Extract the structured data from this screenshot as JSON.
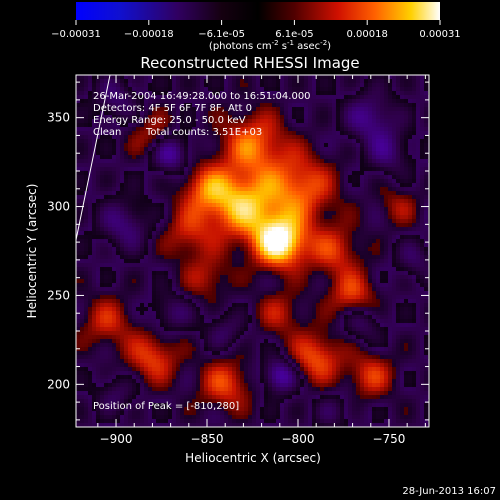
{
  "colorbar": {
    "ticks": [
      "-0.00031",
      "-0.00018",
      "-6.1e-05",
      "6.1e-05",
      "0.00018",
      "0.00031"
    ],
    "unit_label_main": "(photons cm",
    "unit_exp1": "-2",
    "unit_mid": " s",
    "unit_exp2": "-1",
    "unit_tail": " asec",
    "unit_exp3": "-2",
    "unit_close": ")"
  },
  "chart_data": {
    "type": "heatmap",
    "title": "Reconstructed RHESSI Image",
    "xlabel": "Heliocentric X (arcsec)",
    "ylabel": "Heliocentric Y (arcsec)",
    "xlim": [
      -922,
      -728
    ],
    "ylim": [
      176,
      374
    ],
    "xticks": [
      -900,
      -850,
      -800,
      -750
    ],
    "yticks": [
      200,
      250,
      300,
      350
    ],
    "xtick_labels": [
      "−900",
      "−850",
      "−800",
      "−750"
    ],
    "ytick_labels": [
      "200",
      "250",
      "300",
      "350"
    ],
    "colormap": "blue-black-red-yellow-white",
    "value_range": [
      -0.00031,
      0.00031
    ],
    "annotations": [
      "26-Mar-2004 16:49:28.000 to 16:51:04.000",
      "Detectors: 4F 5F 6F 7F 8F, Att 0",
      "Energy Range: 25.0 - 50.0 keV",
      "Clean",
      "Total counts: 3.51E+03",
      "Position of Peak = [-810,280]"
    ],
    "peak": [
      -810,
      280
    ],
    "blobs": [
      {
        "x": -810,
        "y": 280,
        "amp": 1.0,
        "s": 10
      },
      {
        "x": -830,
        "y": 300,
        "amp": 0.7,
        "s": 13
      },
      {
        "x": -800,
        "y": 310,
        "amp": 0.55,
        "s": 14
      },
      {
        "x": -825,
        "y": 335,
        "amp": 0.55,
        "s": 12
      },
      {
        "x": -850,
        "y": 310,
        "amp": 0.5,
        "s": 10
      },
      {
        "x": -860,
        "y": 285,
        "amp": 0.35,
        "s": 10
      },
      {
        "x": -780,
        "y": 275,
        "amp": 0.4,
        "s": 10
      },
      {
        "x": -770,
        "y": 250,
        "amp": 0.45,
        "s": 9
      },
      {
        "x": -810,
        "y": 240,
        "amp": 0.3,
        "s": 9
      },
      {
        "x": -790,
        "y": 215,
        "amp": 0.5,
        "s": 10
      },
      {
        "x": -760,
        "y": 205,
        "amp": 0.4,
        "s": 9
      },
      {
        "x": -880,
        "y": 215,
        "amp": 0.45,
        "s": 10
      },
      {
        "x": -905,
        "y": 235,
        "amp": 0.35,
        "s": 10
      },
      {
        "x": -840,
        "y": 200,
        "amp": 0.45,
        "s": 10
      },
      {
        "x": -850,
        "y": 260,
        "amp": 0.3,
        "s": 9
      },
      {
        "x": -880,
        "y": 340,
        "amp": 0.3,
        "s": 9
      },
      {
        "x": -745,
        "y": 300,
        "amp": 0.25,
        "s": 8
      },
      {
        "x": -870,
        "y": 330,
        "amp": -0.5,
        "s": 8
      },
      {
        "x": -895,
        "y": 290,
        "amp": -0.35,
        "s": 10
      },
      {
        "x": -760,
        "y": 350,
        "amp": -0.4,
        "s": 10
      },
      {
        "x": -750,
        "y": 330,
        "amp": -0.3,
        "s": 9
      },
      {
        "x": -810,
        "y": 205,
        "amp": -0.55,
        "s": 7
      },
      {
        "x": -765,
        "y": 235,
        "amp": -0.3,
        "s": 8
      },
      {
        "x": -900,
        "y": 195,
        "amp": -0.25,
        "s": 8
      },
      {
        "x": -870,
        "y": 240,
        "amp": -0.3,
        "s": 8
      },
      {
        "x": -840,
        "y": 230,
        "amp": -0.25,
        "s": 8
      },
      {
        "x": -735,
        "y": 270,
        "amp": -0.25,
        "s": 8
      },
      {
        "x": -900,
        "y": 360,
        "amp": -0.3,
        "s": 9
      },
      {
        "x": -780,
        "y": 185,
        "amp": -0.2,
        "s": 8
      }
    ]
  },
  "footer": {
    "timestamp": "28-Jun-2013 16:07"
  }
}
